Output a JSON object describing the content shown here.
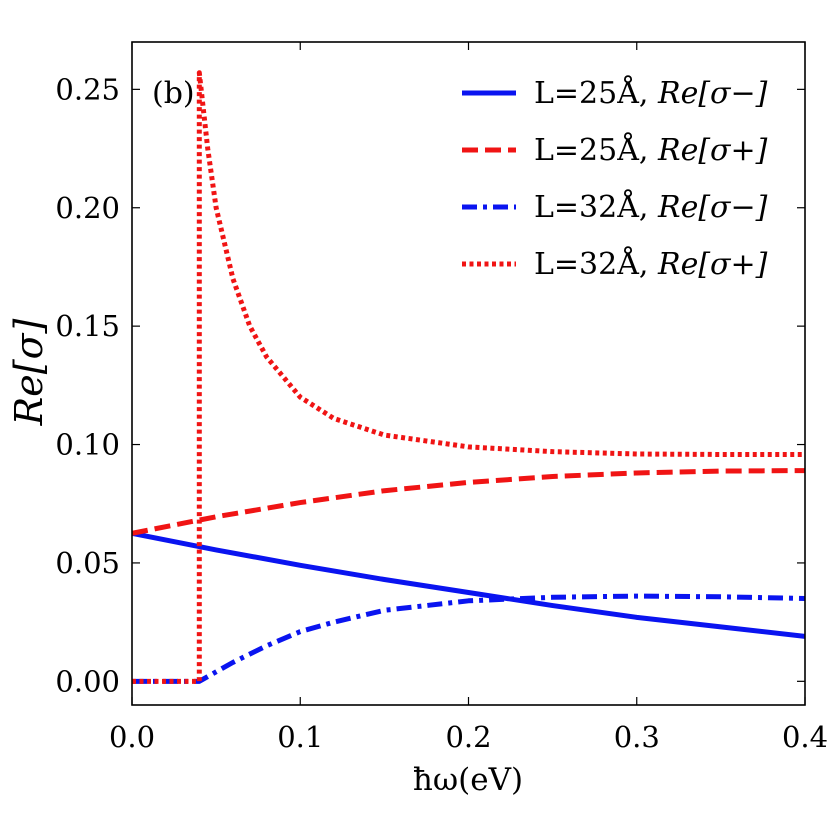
{
  "chart_data": {
    "type": "line",
    "panel_label": "(b)",
    "xlabel": "ħω(eV)",
    "ylabel": "Re[σ]",
    "xlim": [
      0.0,
      0.4
    ],
    "ylim": [
      -0.01,
      0.27
    ],
    "x_ticks": [
      0.0,
      0.1,
      0.2,
      0.3,
      0.4
    ],
    "x_tick_labels": [
      "0.0",
      "0.1",
      "0.2",
      "0.3",
      "0.4"
    ],
    "y_ticks": [
      0.0,
      0.05,
      0.1,
      0.15,
      0.2,
      0.25
    ],
    "y_tick_labels": [
      "0.00",
      "0.05",
      "0.10",
      "0.15",
      "0.20",
      "0.25"
    ],
    "legend_position": "top-right",
    "series": [
      {
        "name": "L=25Å, Re[σ−]",
        "legend_plain": "L=25Å,",
        "legend_math": "Re[σ−]",
        "color": "#0a14f0",
        "style": "solid",
        "x": [
          0.0,
          0.05,
          0.1,
          0.15,
          0.2,
          0.25,
          0.3,
          0.35,
          0.4
        ],
        "y": [
          0.0625,
          0.0555,
          0.049,
          0.043,
          0.0375,
          0.032,
          0.027,
          0.023,
          0.019
        ]
      },
      {
        "name": "L=25Å, Re[σ+]",
        "legend_plain": "L=25Å,",
        "legend_math": "Re[σ+]",
        "color": "#f01414",
        "style": "dashed",
        "x": [
          0.0,
          0.05,
          0.1,
          0.15,
          0.2,
          0.25,
          0.3,
          0.35,
          0.4
        ],
        "y": [
          0.0625,
          0.0695,
          0.0755,
          0.0805,
          0.084,
          0.0865,
          0.088,
          0.0888,
          0.089
        ]
      },
      {
        "name": "L=32Å, Re[σ−]",
        "legend_plain": "L=32Å,",
        "legend_math": "Re[σ−]",
        "color": "#0a14f0",
        "style": "dashdot",
        "x": [
          0.0,
          0.02,
          0.04,
          0.05,
          0.06,
          0.08,
          0.1,
          0.12,
          0.15,
          0.2,
          0.25,
          0.3,
          0.35,
          0.4
        ],
        "y": [
          0.0,
          0.0,
          0.0,
          0.004,
          0.008,
          0.015,
          0.021,
          0.025,
          0.03,
          0.034,
          0.0355,
          0.036,
          0.0357,
          0.035
        ]
      },
      {
        "name": "L=32Å, Re[σ+]",
        "legend_plain": "L=32Å,",
        "legend_math": "Re[σ+]",
        "color": "#f01414",
        "style": "dotted",
        "x": [
          0.0,
          0.02,
          0.04,
          0.04,
          0.045,
          0.05,
          0.06,
          0.07,
          0.08,
          0.1,
          0.12,
          0.15,
          0.2,
          0.25,
          0.3,
          0.35,
          0.4
        ],
        "y": [
          0.0,
          0.0,
          0.0,
          0.257,
          0.225,
          0.2,
          0.17,
          0.15,
          0.137,
          0.12,
          0.111,
          0.104,
          0.099,
          0.097,
          0.096,
          0.0958,
          0.0958
        ]
      }
    ]
  }
}
